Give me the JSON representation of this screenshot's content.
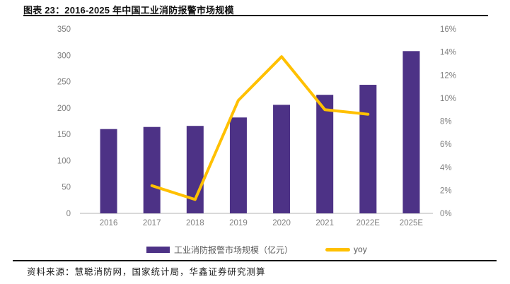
{
  "figure": {
    "title": "图表 23：2016-2025 年中国工业消防报警市场规模",
    "source": "资料来源：慧聪消防网，国家统计局，华鑫证券研究测算"
  },
  "colors": {
    "bar": "#4D3286",
    "line": "#FFC000",
    "axis_text": "#7F7F7F",
    "axis_line": "#D9D9D9",
    "legend_text": "#595959",
    "title_text": "#111111"
  },
  "chart_data": {
    "type": "bar",
    "title": "图表 23：2016-2025 年中国工业消防报警市场规模",
    "categories": [
      "2016",
      "2017",
      "2018",
      "2019",
      "2020",
      "2021",
      "2022E",
      "2025E"
    ],
    "series": [
      {
        "name": "工业消防报警市场规模（亿元）",
        "type": "bar",
        "axis": "left",
        "values": [
          160,
          164,
          166,
          182,
          206,
          225,
          244,
          308
        ]
      },
      {
        "name": "yoy",
        "type": "line",
        "axis": "right",
        "values": [
          null,
          2.4,
          1.2,
          9.8,
          13.6,
          9.0,
          8.6,
          null
        ]
      }
    ],
    "left_axis": {
      "min": 0,
      "max": 350,
      "tick_labels": [
        "0",
        "50",
        "100",
        "150",
        "200",
        "250",
        "300",
        "350"
      ]
    },
    "right_axis": {
      "min": 0,
      "max": 16,
      "tick_labels": [
        "0%",
        "2%",
        "4%",
        "6%",
        "8%",
        "10%",
        "12%",
        "14%",
        "16%"
      ]
    },
    "grid": false,
    "legend_position": "bottom"
  }
}
